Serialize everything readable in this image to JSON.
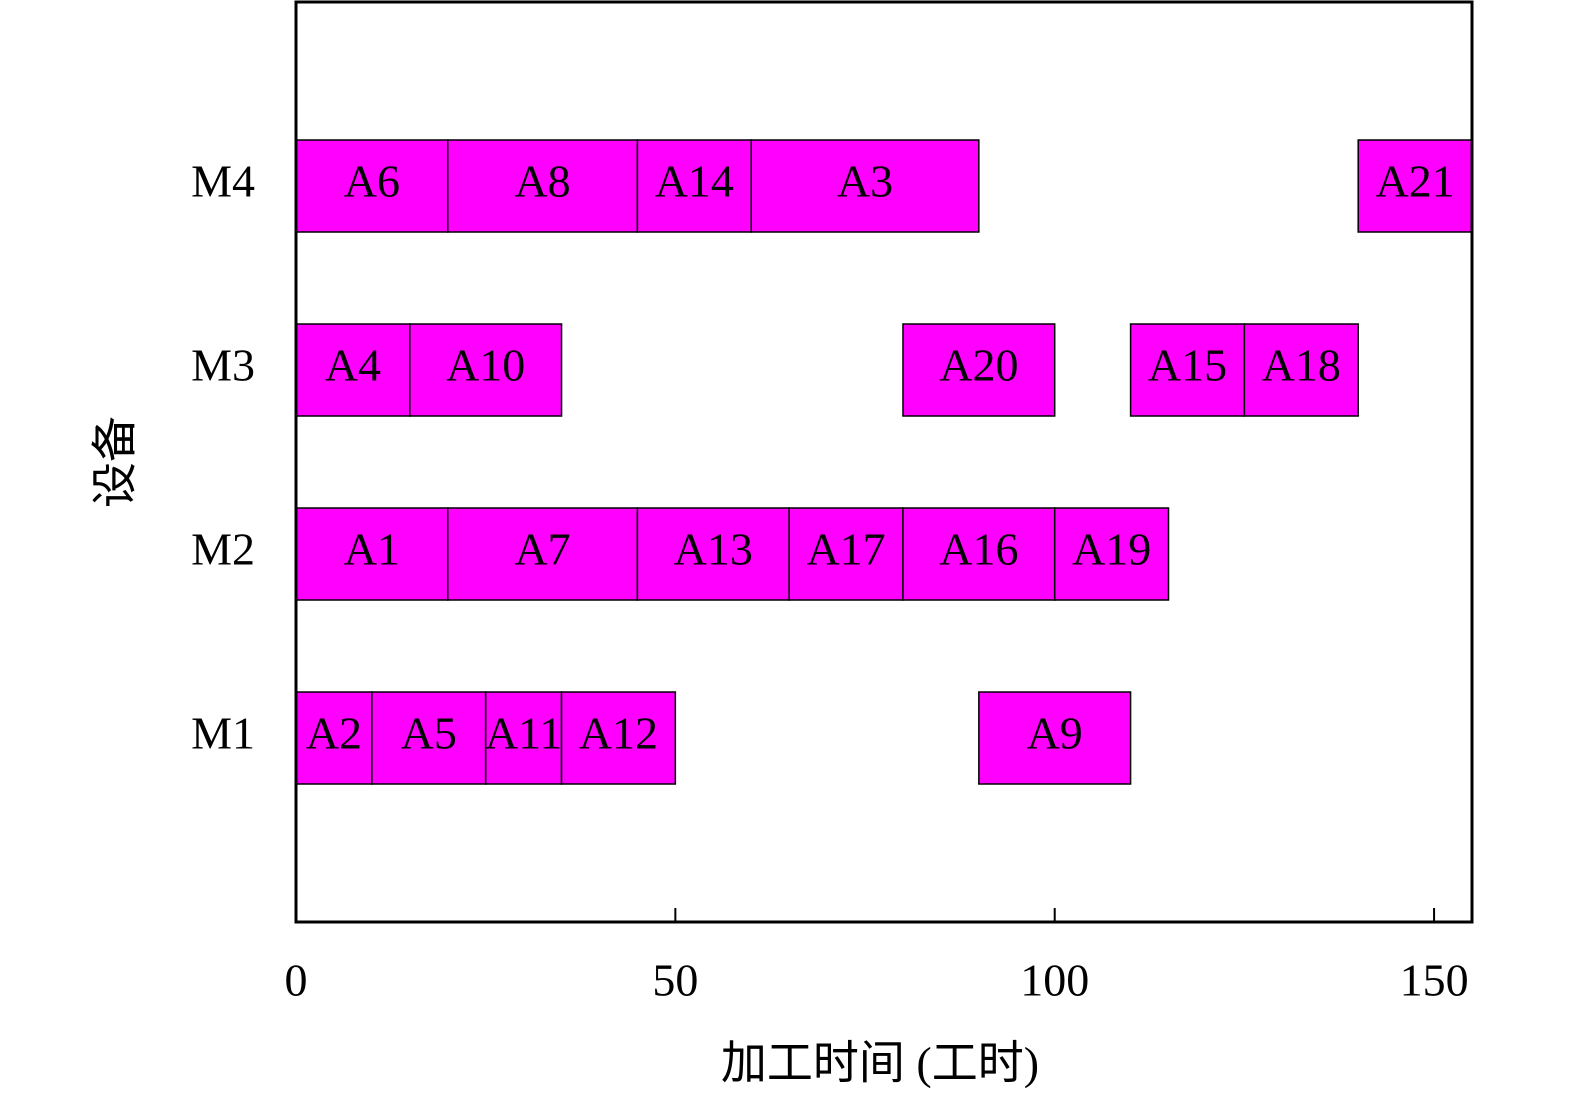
{
  "chart_data": {
    "type": "gantt",
    "x_label": "加工时间 (工时)",
    "y_label": "设备",
    "xlim": [
      0,
      155
    ],
    "xticks": [
      0,
      50,
      100,
      150
    ],
    "color": "#ff00ff",
    "machines": [
      {
        "name": "M1",
        "tasks": [
          {
            "label": "A2",
            "start": 0,
            "end": 10
          },
          {
            "label": "A5",
            "start": 10,
            "end": 25
          },
          {
            "label": "A11",
            "start": 25,
            "end": 35
          },
          {
            "label": "A12",
            "start": 35,
            "end": 50
          },
          {
            "label": "A9",
            "start": 90,
            "end": 110
          }
        ]
      },
      {
        "name": "M2",
        "tasks": [
          {
            "label": "A1",
            "start": 0,
            "end": 20
          },
          {
            "label": "A7",
            "start": 20,
            "end": 45
          },
          {
            "label": "A13",
            "start": 45,
            "end": 65
          },
          {
            "label": "A17",
            "start": 65,
            "end": 80
          },
          {
            "label": "A16",
            "start": 80,
            "end": 100
          },
          {
            "label": "A19",
            "start": 100,
            "end": 115
          }
        ]
      },
      {
        "name": "M3",
        "tasks": [
          {
            "label": "A4",
            "start": 0,
            "end": 15
          },
          {
            "label": "A10",
            "start": 15,
            "end": 35
          },
          {
            "label": "A20",
            "start": 80,
            "end": 100
          },
          {
            "label": "A15",
            "start": 110,
            "end": 125
          },
          {
            "label": "A18",
            "start": 125,
            "end": 140
          }
        ]
      },
      {
        "name": "M4",
        "tasks": [
          {
            "label": "A6",
            "start": 0,
            "end": 20
          },
          {
            "label": "A8",
            "start": 20,
            "end": 45
          },
          {
            "label": "A14",
            "start": 45,
            "end": 60
          },
          {
            "label": "A3",
            "start": 60,
            "end": 90
          },
          {
            "label": "A21",
            "start": 140,
            "end": 155
          }
        ]
      }
    ]
  }
}
